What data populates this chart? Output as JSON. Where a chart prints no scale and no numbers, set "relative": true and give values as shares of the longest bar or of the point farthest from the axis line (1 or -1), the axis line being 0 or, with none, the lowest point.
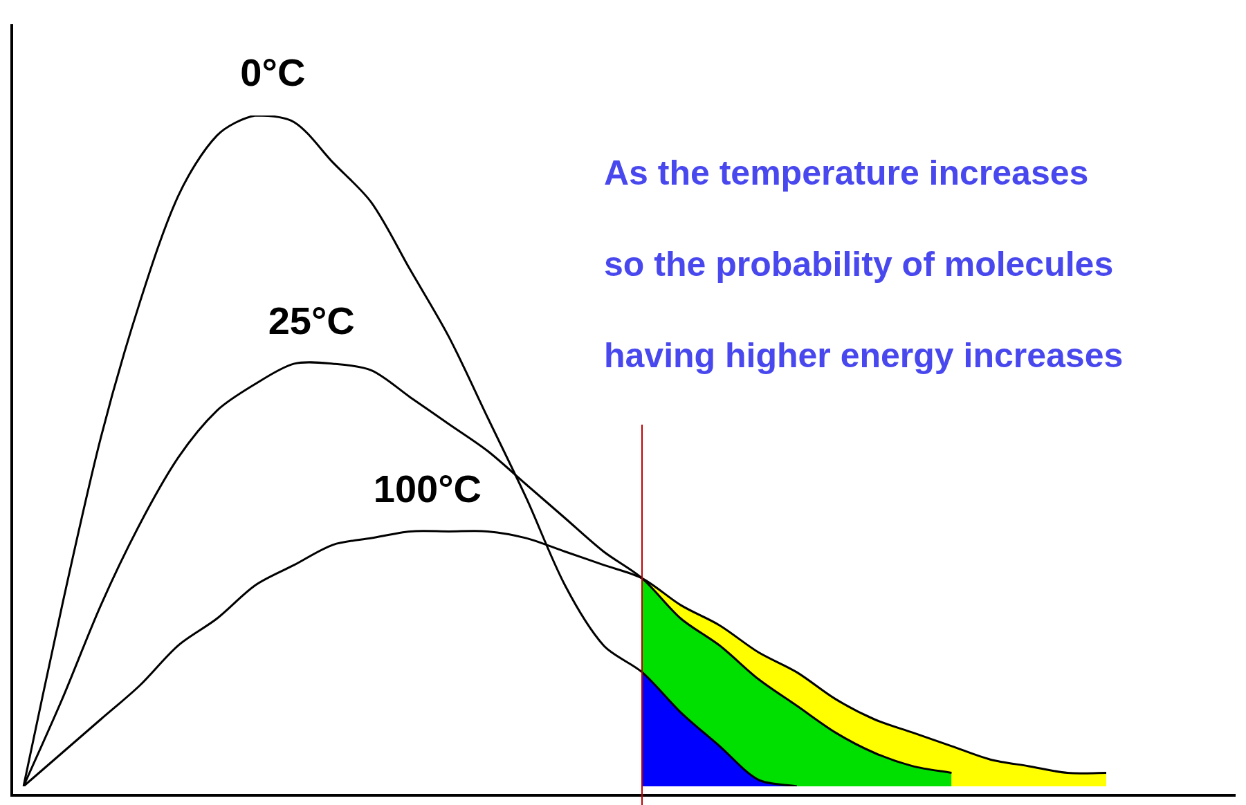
{
  "chart_data": {
    "type": "line",
    "relative": true,
    "marker": "none",
    "legend": false,
    "tick_labels": false,
    "categories": [
      null,
      null,
      null,
      null,
      null,
      null,
      null,
      null,
      null,
      null,
      null,
      null,
      null,
      null,
      null,
      null,
      null,
      null,
      null,
      null,
      null,
      null,
      null,
      null,
      null,
      null,
      null,
      null,
      null
    ],
    "series": [
      {
        "type": "area",
        "color": "#ffff00",
        "values": [
          null,
          null,
          null,
          null,
          null,
          null,
          null,
          null,
          null,
          null,
          null,
          null,
          null,
          null,
          null,
          null,
          0.31,
          0.27,
          0.24,
          0.2,
          0.17,
          0.13,
          0.1,
          0.08,
          0.06,
          0.04,
          0.03,
          0.02,
          0.02
        ]
      },
      {
        "type": "area",
        "color": "#00e000",
        "values": [
          null,
          null,
          null,
          null,
          null,
          null,
          null,
          null,
          null,
          null,
          null,
          null,
          null,
          null,
          null,
          null,
          0.31,
          0.25,
          0.21,
          0.16,
          0.12,
          0.08,
          0.05,
          0.03,
          0.02,
          null,
          null,
          null,
          null
        ]
      },
      {
        "type": "area",
        "color": "#0000ff",
        "values": [
          null,
          null,
          null,
          null,
          null,
          null,
          null,
          null,
          null,
          null,
          null,
          null,
          null,
          null,
          null,
          null,
          0.17,
          0.11,
          0.06,
          0.01,
          0,
          null,
          null,
          null,
          null,
          null,
          null,
          null,
          null
        ]
      },
      {
        "name": "0°C",
        "color": "#000000",
        "values": [
          0,
          0.27,
          0.52,
          0.72,
          0.88,
          0.97,
          1.0,
          0.99,
          0.93,
          0.87,
          0.77,
          0.67,
          0.55,
          0.43,
          0.3,
          0.21,
          0.17,
          0.11,
          0.06,
          0.01,
          0,
          null,
          null,
          null,
          null,
          null,
          null,
          null,
          null
        ]
      },
      {
        "name": "25°C",
        "color": "#000000",
        "values": [
          0,
          0.13,
          0.27,
          0.39,
          0.49,
          0.56,
          0.6,
          0.63,
          0.63,
          0.62,
          0.58,
          0.54,
          0.5,
          0.45,
          0.4,
          0.35,
          0.31,
          0.25,
          0.21,
          0.16,
          0.12,
          0.08,
          0.05,
          0.03,
          0.02,
          null,
          null,
          null,
          null
        ]
      },
      {
        "name": "100°C",
        "color": "#000000",
        "values": [
          0,
          0.05,
          0.1,
          0.15,
          0.21,
          0.25,
          0.3,
          0.33,
          0.36,
          0.37,
          0.38,
          0.38,
          0.38,
          0.37,
          0.35,
          0.33,
          0.31,
          0.27,
          0.24,
          0.2,
          0.17,
          0.13,
          0.1,
          0.08,
          0.06,
          0.04,
          0.03,
          0.02,
          0.02
        ]
      }
    ],
    "annotations": [
      "As the temperature increases",
      "so the probability of molecules",
      "having higher energy increases"
    ]
  }
}
